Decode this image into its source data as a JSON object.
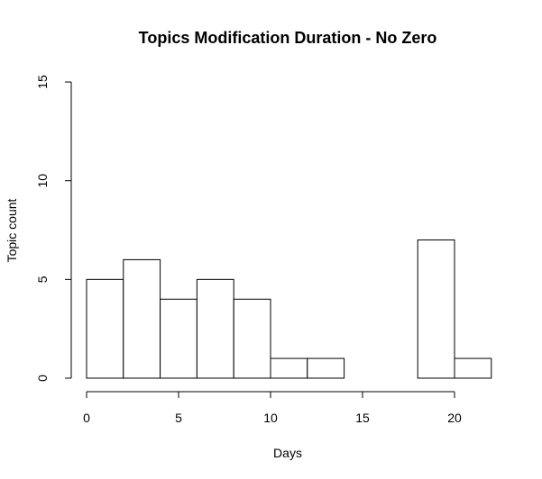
{
  "chart_data": {
    "type": "bar",
    "title": "Topics Modification Duration - No Zero",
    "xlabel": "Days",
    "ylabel": "Topic count",
    "bins": [
      {
        "start": 0,
        "end": 2,
        "count": 5
      },
      {
        "start": 2,
        "end": 4,
        "count": 6
      },
      {
        "start": 4,
        "end": 6,
        "count": 4
      },
      {
        "start": 6,
        "end": 8,
        "count": 5
      },
      {
        "start": 8,
        "end": 10,
        "count": 4
      },
      {
        "start": 10,
        "end": 12,
        "count": 1
      },
      {
        "start": 12,
        "end": 14,
        "count": 1
      },
      {
        "start": 14,
        "end": 16,
        "count": 0
      },
      {
        "start": 16,
        "end": 18,
        "count": 0
      },
      {
        "start": 18,
        "end": 20,
        "count": 7
      },
      {
        "start": 20,
        "end": 22,
        "count": 1
      }
    ],
    "xlim": [
      0,
      22
    ],
    "ylim": [
      0,
      15
    ],
    "xticks": [
      "0",
      "5",
      "10",
      "15",
      "20"
    ],
    "yticks": [
      "0",
      "5",
      "10",
      "15"
    ],
    "grid": false,
    "bar_fill": "#ffffff",
    "bar_stroke": "#000000"
  }
}
